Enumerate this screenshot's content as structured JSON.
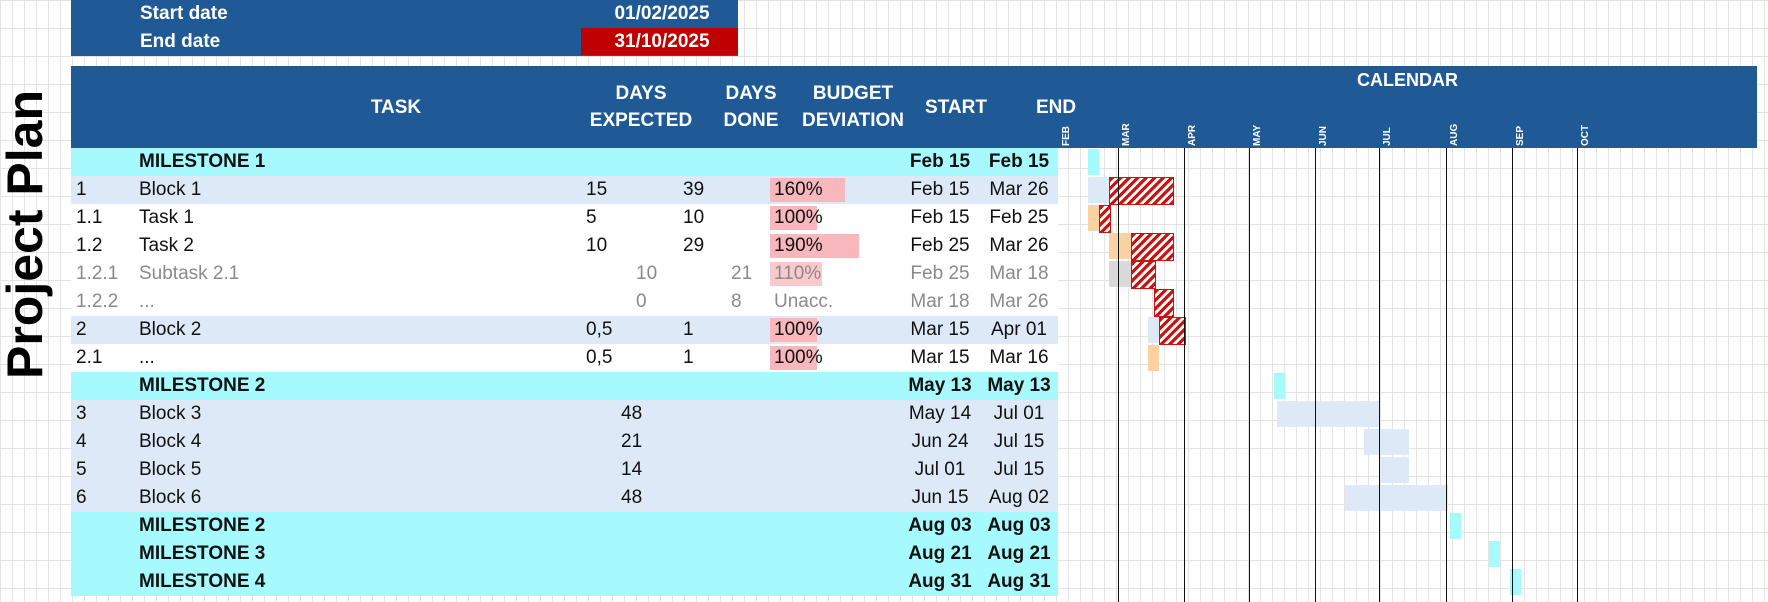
{
  "summary": {
    "start_label": "Start date",
    "start_value": "01/02/2025",
    "end_label": "End date",
    "end_value": "31/10/2025",
    "end_value_bg": "#c00000"
  },
  "title": "Project Plan",
  "columns": {
    "task": "TASK",
    "days_expected_1": "DAYS",
    "days_expected_2": "EXPECTED",
    "days_done_1": "DAYS",
    "days_done_2": "DONE",
    "budget_1": "BUDGET",
    "budget_2": "DEVIATION",
    "start": "START",
    "end": "END",
    "calendar": "CALENDAR"
  },
  "months": [
    "FEB",
    "MAR",
    "APR",
    "MAY",
    "JUN",
    "JUL",
    "AUG",
    "SEP",
    "OCT"
  ],
  "rows": [
    {
      "type": "milestone",
      "id": "",
      "name": "MILESTONE 1",
      "expected": "",
      "done": "",
      "deviation": "",
      "dev_pct": 0,
      "start": "Feb 15",
      "end": "Feb 15"
    },
    {
      "type": "block",
      "id": "1",
      "name": "Block 1",
      "expected": "15",
      "done": "39",
      "deviation": "160%",
      "dev_pct": 160,
      "start": "Feb 15",
      "end": "Mar 26"
    },
    {
      "type": "task",
      "id": "1.1",
      "name": "Task 1",
      "expected": "5",
      "done": "10",
      "deviation": "100%",
      "dev_pct": 100,
      "start": "Feb 15",
      "end": "Feb 25"
    },
    {
      "type": "task",
      "id": "1.2",
      "name": "Task 2",
      "expected": "10",
      "done": "29",
      "deviation": "190%",
      "dev_pct": 190,
      "start": "Feb 25",
      "end": "Mar 26"
    },
    {
      "type": "subtask",
      "id": "1.2.1",
      "name": "Subtask 2.1",
      "expected": "10",
      "done": "21",
      "deviation": "110%",
      "dev_pct": 110,
      "start": "Feb 25",
      "end": "Mar 18"
    },
    {
      "type": "subtask",
      "id": "1.2.2",
      "name": "...",
      "expected": "0",
      "done": "8",
      "deviation": "Unacc.",
      "dev_pct": 0,
      "start": "Mar 18",
      "end": "Mar 26"
    },
    {
      "type": "block",
      "id": "2",
      "name": "Block 2",
      "expected": "0,5",
      "done": "1",
      "deviation": "100%",
      "dev_pct": 100,
      "start": "Mar 15",
      "end": "Apr 01"
    },
    {
      "type": "task",
      "id": "2.1",
      "name": "...",
      "expected": "0,5",
      "done": "1",
      "deviation": "100%",
      "dev_pct": 100,
      "start": "Mar 15",
      "end": "Mar 16"
    },
    {
      "type": "milestone",
      "id": "",
      "name": "MILESTONE 2",
      "expected": "",
      "done": "",
      "deviation": "",
      "dev_pct": 0,
      "start": "May 13",
      "end": "May 13"
    },
    {
      "type": "block",
      "id": "3",
      "name": "Block 3",
      "expected": "48",
      "done": "",
      "deviation": "",
      "dev_pct": 0,
      "start": "May 14",
      "end": "Jul 01"
    },
    {
      "type": "block",
      "id": "4",
      "name": "Block 4",
      "expected": "21",
      "done": "",
      "deviation": "",
      "dev_pct": 0,
      "start": "Jun 24",
      "end": "Jul 15"
    },
    {
      "type": "block",
      "id": "5",
      "name": "Block 5",
      "expected": "14",
      "done": "",
      "deviation": "",
      "dev_pct": 0,
      "start": "Jul 01",
      "end": "Jul 15"
    },
    {
      "type": "block",
      "id": "6",
      "name": "Block 6",
      "expected": "48",
      "done": "",
      "deviation": "",
      "dev_pct": 0,
      "start": "Jun 15",
      "end": "Aug 02"
    },
    {
      "type": "milestone",
      "id": "",
      "name": "MILESTONE 2",
      "expected": "",
      "done": "",
      "deviation": "",
      "dev_pct": 0,
      "start": "Aug 03",
      "end": "Aug 03"
    },
    {
      "type": "milestone",
      "id": "",
      "name": "MILESTONE 3",
      "expected": "",
      "done": "",
      "deviation": "",
      "dev_pct": 0,
      "start": "Aug 21",
      "end": "Aug 21"
    },
    {
      "type": "milestone",
      "id": "",
      "name": "MILESTONE 4",
      "expected": "",
      "done": "",
      "deviation": "",
      "dev_pct": 0,
      "start": "Aug 31",
      "end": "Aug 31"
    }
  ],
  "colors": {
    "header_blue": "#1f5a96",
    "milestone_cyan": "#a6fafd",
    "block_blue": "#dde9f7",
    "deviation_pink": "#f7b7bd",
    "planned_orange": "#fbd3a2",
    "subtask_gray": "#d9d9d9",
    "overrun_red": "#cc1111"
  },
  "gantt": [
    {
      "row": 0,
      "bars": [
        {
          "from": "2025-02-15",
          "to": "2025-02-15",
          "style": "milestone"
        }
      ]
    },
    {
      "row": 1,
      "bars": [
        {
          "from": "2025-02-15",
          "to": "2025-02-25",
          "style": "block"
        },
        {
          "from": "2025-02-25",
          "to": "2025-03-26",
          "style": "overrun"
        }
      ]
    },
    {
      "row": 2,
      "bars": [
        {
          "from": "2025-02-15",
          "to": "2025-02-20",
          "style": "planned"
        },
        {
          "from": "2025-02-20",
          "to": "2025-02-25",
          "style": "overrun"
        }
      ]
    },
    {
      "row": 3,
      "bars": [
        {
          "from": "2025-02-25",
          "to": "2025-03-07",
          "style": "planned"
        },
        {
          "from": "2025-03-07",
          "to": "2025-03-26",
          "style": "overrun"
        }
      ]
    },
    {
      "row": 4,
      "bars": [
        {
          "from": "2025-02-25",
          "to": "2025-03-07",
          "style": "gray"
        },
        {
          "from": "2025-03-07",
          "to": "2025-03-18",
          "style": "overrun"
        }
      ]
    },
    {
      "row": 5,
      "bars": [
        {
          "from": "2025-03-18",
          "to": "2025-03-26",
          "style": "overrun"
        }
      ]
    },
    {
      "row": 6,
      "bars": [
        {
          "from": "2025-03-15",
          "to": "2025-03-20",
          "style": "block"
        },
        {
          "from": "2025-03-20",
          "to": "2025-04-01",
          "style": "overrun"
        }
      ]
    },
    {
      "row": 7,
      "bars": [
        {
          "from": "2025-03-15",
          "to": "2025-03-20",
          "style": "planned"
        }
      ]
    },
    {
      "row": 8,
      "bars": [
        {
          "from": "2025-05-13",
          "to": "2025-05-13",
          "style": "milestone"
        }
      ]
    },
    {
      "row": 9,
      "bars": [
        {
          "from": "2025-05-14",
          "to": "2025-07-01",
          "style": "block"
        }
      ]
    },
    {
      "row": 10,
      "bars": [
        {
          "from": "2025-06-24",
          "to": "2025-07-15",
          "style": "block"
        }
      ]
    },
    {
      "row": 11,
      "bars": [
        {
          "from": "2025-07-01",
          "to": "2025-07-15",
          "style": "block"
        }
      ]
    },
    {
      "row": 12,
      "bars": [
        {
          "from": "2025-06-15",
          "to": "2025-08-02",
          "style": "block"
        }
      ]
    },
    {
      "row": 13,
      "bars": [
        {
          "from": "2025-08-03",
          "to": "2025-08-03",
          "style": "milestone"
        }
      ]
    },
    {
      "row": 14,
      "bars": [
        {
          "from": "2025-08-21",
          "to": "2025-08-21",
          "style": "milestone"
        }
      ]
    },
    {
      "row": 15,
      "bars": [
        {
          "from": "2025-08-31",
          "to": "2025-08-31",
          "style": "milestone"
        }
      ]
    }
  ]
}
